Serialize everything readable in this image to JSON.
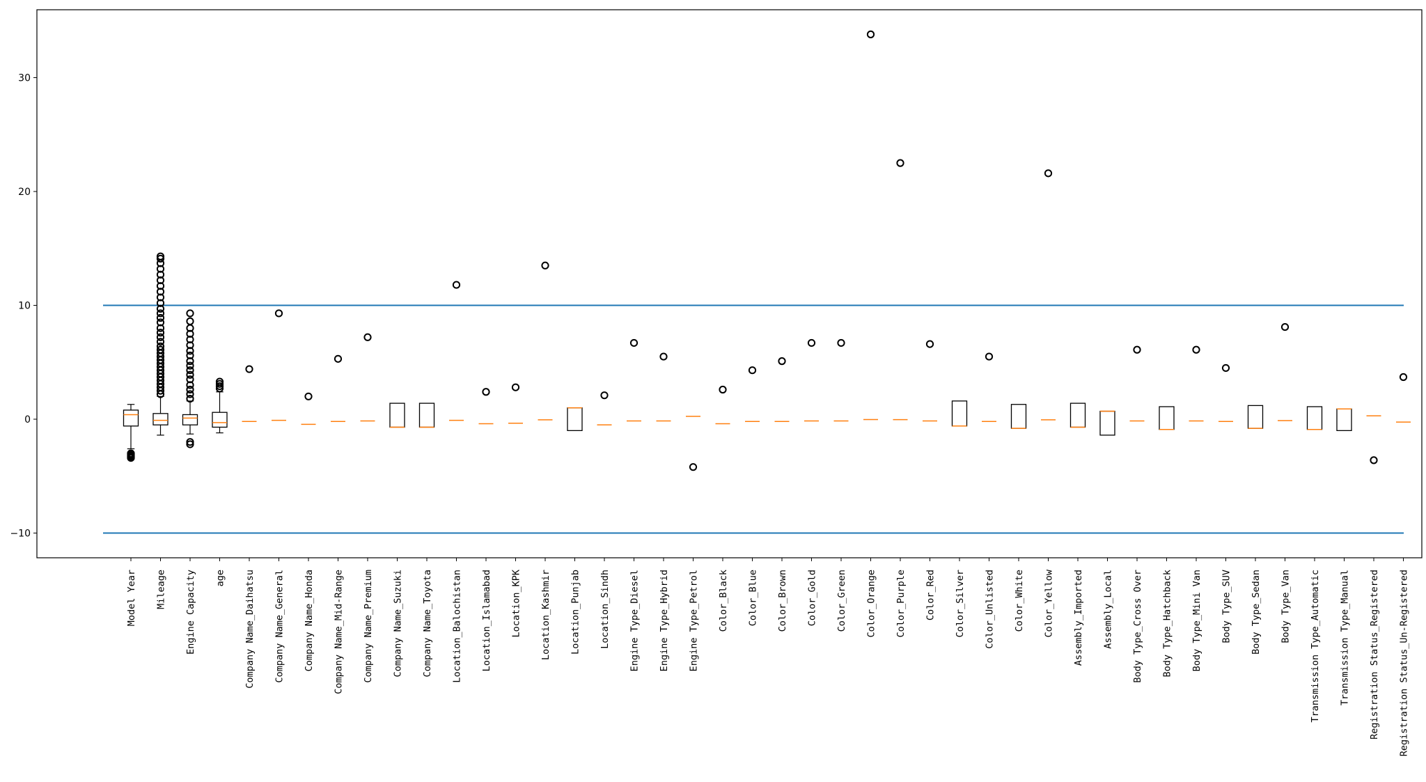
{
  "chart_data": {
    "type": "box",
    "title": "",
    "xlabel": "",
    "ylabel": "",
    "ylim": [
      -12.3,
      36
    ],
    "yticks": [
      -10,
      0,
      10,
      20,
      30
    ],
    "grid": false,
    "colors": {
      "box": "#000000",
      "median": "#ff7f0e",
      "threshold_line": "#1f77b4",
      "axes": "#000000"
    },
    "reference_lines": [
      10,
      -10
    ],
    "categories": [
      "Model Year",
      "Mileage",
      "Engine Capacity",
      "age",
      "Company Name_Daihatsu",
      "Company Name_General",
      "Company Name_Honda",
      "Company Name_Mid-Range",
      "Company Name_Premium",
      "Company Name_Suzuki",
      "Company Name_Toyota",
      "Location_Balochistan",
      "Location_Islamabad",
      "Location_KPK",
      "Location_Kashmir",
      "Location_Punjab",
      "Location_Sindh",
      "Engine Type_Diesel",
      "Engine Type_Hybrid",
      "Engine Type_Petrol",
      "Color_Black",
      "Color_Blue",
      "Color_Brown",
      "Color_Gold",
      "Color_Green",
      "Color_Orange",
      "Color_Purple",
      "Color_Red",
      "Color_Silver",
      "Color_Unlisted",
      "Color_White",
      "Color_Yellow",
      "Assembly_Imported",
      "Assembly_Local",
      "Body Type_Cross Over",
      "Body Type_Hatchback",
      "Body Type_Mini Van",
      "Body Type_SUV",
      "Body Type_Sedan",
      "Body Type_Van",
      "Transmission Type_Automatic",
      "Transmission Type_Manual",
      "Registration Status_Registered",
      "Registration Status_Un-Registered"
    ],
    "boxes": [
      {
        "q1": -0.6,
        "median": 0.4,
        "q3": 0.8,
        "whislo": -2.6,
        "whishi": 1.3,
        "fliers": [
          -3.0,
          -3.1,
          -3.2,
          -3.3,
          -3.4
        ]
      },
      {
        "q1": -0.5,
        "median": -0.1,
        "q3": 0.5,
        "whislo": -1.4,
        "whishi": 2.0,
        "fliers": [
          2.2,
          2.5,
          2.8,
          3.1,
          3.4,
          3.7,
          4.0,
          4.3,
          4.6,
          4.9,
          5.2,
          5.5,
          5.8,
          6.1,
          6.4,
          6.8,
          7.2,
          7.6,
          8.0,
          8.5,
          8.9,
          9.3,
          9.7,
          10.2,
          10.7,
          11.2,
          11.7,
          12.2,
          12.7,
          13.2,
          13.7,
          14.1,
          14.3
        ]
      },
      {
        "q1": -0.5,
        "median": 0.1,
        "q3": 0.4,
        "whislo": -1.3,
        "whishi": 1.6,
        "fliers": [
          -2.0,
          -2.2,
          1.8,
          2.2,
          2.6,
          3.0,
          3.5,
          3.9,
          4.3,
          4.7,
          5.1,
          5.6,
          6.0,
          6.5,
          7.0,
          7.5,
          8.0,
          8.6,
          9.3
        ]
      },
      {
        "q1": -0.7,
        "median": -0.3,
        "q3": 0.6,
        "whislo": -1.2,
        "whishi": 2.4,
        "fliers": [
          2.7,
          2.9,
          3.1,
          3.3
        ]
      },
      {
        "q1": -0.2,
        "median": -0.2,
        "q3": -0.2,
        "whislo": -0.2,
        "whishi": -0.2,
        "fliers": [
          4.4
        ]
      },
      {
        "q1": -0.1,
        "median": -0.1,
        "q3": -0.1,
        "whislo": -0.1,
        "whishi": -0.1,
        "fliers": [
          9.3
        ]
      },
      {
        "q1": -0.45,
        "median": -0.45,
        "q3": -0.45,
        "whislo": -0.45,
        "whishi": -0.45,
        "fliers": [
          2.0
        ]
      },
      {
        "q1": -0.2,
        "median": -0.2,
        "q3": -0.2,
        "whislo": -0.2,
        "whishi": -0.2,
        "fliers": [
          5.3
        ]
      },
      {
        "q1": -0.15,
        "median": -0.15,
        "q3": -0.15,
        "whislo": -0.15,
        "whishi": -0.15,
        "fliers": [
          7.2
        ]
      },
      {
        "q1": -0.7,
        "median": -0.7,
        "q3": 1.4,
        "whislo": -0.7,
        "whishi": 1.4,
        "fliers": []
      },
      {
        "q1": -0.7,
        "median": -0.7,
        "q3": 1.4,
        "whislo": -0.7,
        "whishi": 1.4,
        "fliers": []
      },
      {
        "q1": -0.1,
        "median": -0.1,
        "q3": -0.1,
        "whislo": -0.1,
        "whishi": -0.1,
        "fliers": [
          11.8
        ]
      },
      {
        "q1": -0.4,
        "median": -0.4,
        "q3": -0.4,
        "whislo": -0.4,
        "whishi": -0.4,
        "fliers": [
          2.4
        ]
      },
      {
        "q1": -0.35,
        "median": -0.35,
        "q3": -0.35,
        "whislo": -0.35,
        "whishi": -0.35,
        "fliers": [
          2.8
        ]
      },
      {
        "q1": -0.05,
        "median": -0.05,
        "q3": -0.05,
        "whislo": -0.05,
        "whishi": -0.05,
        "fliers": [
          13.5
        ]
      },
      {
        "q1": -1.0,
        "median": 1.0,
        "q3": 1.0,
        "whislo": -1.0,
        "whishi": 1.0,
        "fliers": []
      },
      {
        "q1": -0.5,
        "median": -0.5,
        "q3": -0.5,
        "whislo": -0.5,
        "whishi": -0.5,
        "fliers": [
          2.1
        ]
      },
      {
        "q1": -0.15,
        "median": -0.15,
        "q3": -0.15,
        "whislo": -0.15,
        "whishi": -0.15,
        "fliers": [
          6.7
        ]
      },
      {
        "q1": -0.15,
        "median": -0.15,
        "q3": -0.15,
        "whislo": -0.15,
        "whishi": -0.15,
        "fliers": [
          5.5
        ]
      },
      {
        "q1": 0.25,
        "median": 0.25,
        "q3": 0.25,
        "whislo": 0.25,
        "whishi": 0.25,
        "fliers": [
          -4.2
        ]
      },
      {
        "q1": -0.4,
        "median": -0.4,
        "q3": -0.4,
        "whislo": -0.4,
        "whishi": -0.4,
        "fliers": [
          2.6
        ]
      },
      {
        "q1": -0.2,
        "median": -0.2,
        "q3": -0.2,
        "whislo": -0.2,
        "whishi": -0.2,
        "fliers": [
          4.3
        ]
      },
      {
        "q1": -0.2,
        "median": -0.2,
        "q3": -0.2,
        "whislo": -0.2,
        "whishi": -0.2,
        "fliers": [
          5.1
        ]
      },
      {
        "q1": -0.15,
        "median": -0.15,
        "q3": -0.15,
        "whislo": -0.15,
        "whishi": -0.15,
        "fliers": [
          6.7
        ]
      },
      {
        "q1": -0.15,
        "median": -0.15,
        "q3": -0.15,
        "whislo": -0.15,
        "whishi": -0.15,
        "fliers": [
          6.7
        ]
      },
      {
        "q1": -0.03,
        "median": -0.03,
        "q3": -0.03,
        "whislo": -0.03,
        "whishi": -0.03,
        "fliers": [
          33.8
        ]
      },
      {
        "q1": -0.04,
        "median": -0.04,
        "q3": -0.04,
        "whislo": -0.04,
        "whishi": -0.04,
        "fliers": [
          22.5
        ]
      },
      {
        "q1": -0.15,
        "median": -0.15,
        "q3": -0.15,
        "whislo": -0.15,
        "whishi": -0.15,
        "fliers": [
          6.6
        ]
      },
      {
        "q1": -0.6,
        "median": -0.6,
        "q3": 1.6,
        "whislo": -0.6,
        "whishi": 1.6,
        "fliers": []
      },
      {
        "q1": -0.2,
        "median": -0.2,
        "q3": -0.2,
        "whislo": -0.2,
        "whishi": -0.2,
        "fliers": [
          5.5
        ]
      },
      {
        "q1": -0.8,
        "median": -0.8,
        "q3": 1.3,
        "whislo": -0.8,
        "whishi": 1.3,
        "fliers": []
      },
      {
        "q1": -0.05,
        "median": -0.05,
        "q3": -0.05,
        "whislo": -0.05,
        "whishi": -0.05,
        "fliers": [
          21.6
        ]
      },
      {
        "q1": -0.7,
        "median": -0.7,
        "q3": 1.4,
        "whislo": -0.7,
        "whishi": 1.4,
        "fliers": []
      },
      {
        "q1": -1.4,
        "median": 0.7,
        "q3": 0.7,
        "whislo": -1.4,
        "whishi": 0.7,
        "fliers": []
      },
      {
        "q1": -0.15,
        "median": -0.15,
        "q3": -0.15,
        "whislo": -0.15,
        "whishi": -0.15,
        "fliers": [
          6.1
        ]
      },
      {
        "q1": -0.9,
        "median": -0.9,
        "q3": 1.1,
        "whislo": -0.9,
        "whishi": 1.1,
        "fliers": []
      },
      {
        "q1": -0.15,
        "median": -0.15,
        "q3": -0.15,
        "whislo": -0.15,
        "whishi": -0.15,
        "fliers": [
          6.1
        ]
      },
      {
        "q1": -0.2,
        "median": -0.2,
        "q3": -0.2,
        "whislo": -0.2,
        "whishi": -0.2,
        "fliers": [
          4.5
        ]
      },
      {
        "q1": -0.8,
        "median": -0.8,
        "q3": 1.2,
        "whislo": -0.8,
        "whishi": 1.2,
        "fliers": []
      },
      {
        "q1": -0.12,
        "median": -0.12,
        "q3": -0.12,
        "whislo": -0.12,
        "whishi": -0.12,
        "fliers": [
          8.1
        ]
      },
      {
        "q1": -0.9,
        "median": -0.9,
        "q3": 1.1,
        "whislo": -0.9,
        "whishi": 1.1,
        "fliers": []
      },
      {
        "q1": -1.0,
        "median": 0.9,
        "q3": 0.9,
        "whislo": -1.0,
        "whishi": 0.9,
        "fliers": []
      },
      {
        "q1": 0.3,
        "median": 0.3,
        "q3": 0.3,
        "whislo": 0.3,
        "whishi": 0.3,
        "fliers": [
          -3.6
        ]
      },
      {
        "q1": -0.25,
        "median": -0.25,
        "q3": -0.25,
        "whislo": -0.25,
        "whishi": -0.25,
        "fliers": [
          3.7
        ]
      }
    ]
  }
}
